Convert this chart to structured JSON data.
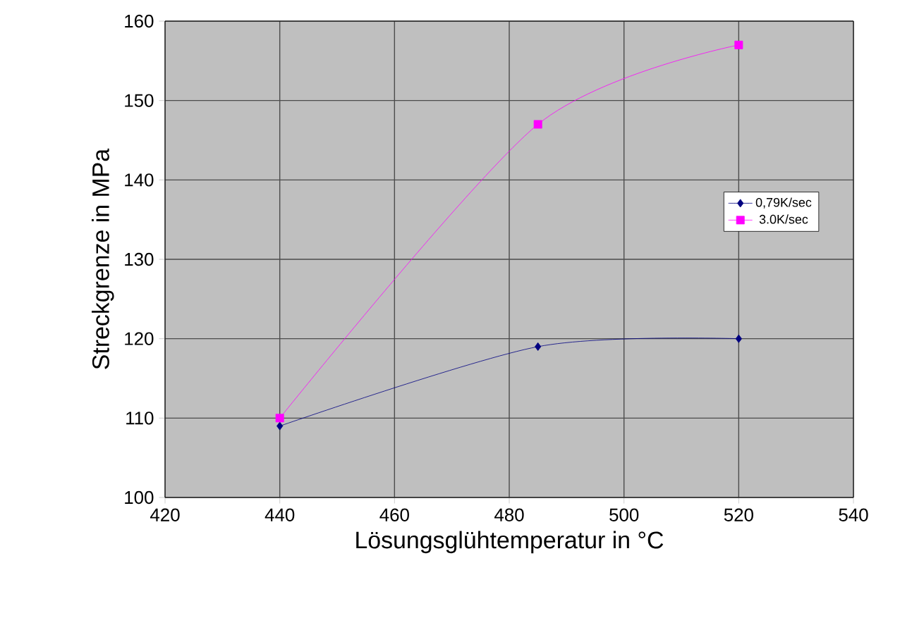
{
  "chart_data": {
    "type": "line",
    "xlabel": "Lösungsglühtemperatur in °C",
    "ylabel": "Streckgrenze in MPa",
    "x": [
      440,
      485,
      520
    ],
    "series": [
      {
        "name": "0,79K/sec",
        "color": "#000080",
        "marker": "diamond",
        "values": [
          109,
          119,
          120
        ]
      },
      {
        "name": "3.0K/sec",
        "color": "#ff00ff",
        "marker": "square",
        "values": [
          110,
          147,
          157
        ]
      }
    ],
    "xlim": [
      420,
      540
    ],
    "xticks": [
      420,
      440,
      460,
      480,
      500,
      520,
      540
    ],
    "ylim": [
      100,
      160
    ],
    "yticks": [
      100,
      110,
      120,
      130,
      140,
      150,
      160
    ],
    "grid": true,
    "legend": "right",
    "line_style": "solid"
  }
}
